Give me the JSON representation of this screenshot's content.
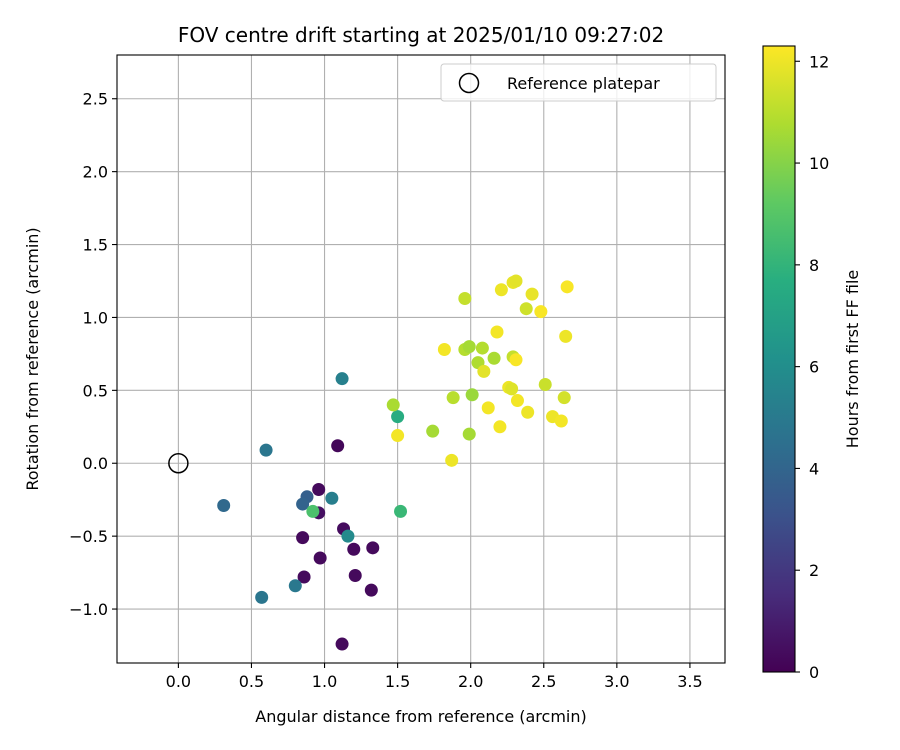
{
  "chart_data": {
    "type": "scatter",
    "title": "FOV centre drift starting at 2025/01/10 09:27:02",
    "xlabel": "Angular distance from reference (arcmin)",
    "ylabel": "Rotation from reference (arcmin)",
    "xlim": [
      -0.42,
      3.74
    ],
    "ylim": [
      -1.37,
      2.8
    ],
    "xticks": [
      "0.0",
      "0.5",
      "1.0",
      "1.5",
      "2.0",
      "2.5",
      "3.0",
      "3.5"
    ],
    "yticks": [
      "−1.0",
      "−0.5",
      "0.0",
      "0.5",
      "1.0",
      "1.5",
      "2.0",
      "2.5"
    ],
    "grid": true,
    "legend": {
      "placement": "top-right",
      "entries": [
        "Reference platepar"
      ]
    },
    "reference": {
      "x": 0.0,
      "y": 0.0
    },
    "colorbar": {
      "label": "Hours from first FF file",
      "range": [
        0,
        12.3
      ],
      "ticks": [
        "0",
        "2",
        "4",
        "6",
        "8",
        "10",
        "12"
      ],
      "colormap": "viridis"
    },
    "points": [
      {
        "x": 1.09,
        "y": 0.12,
        "h": 0.2
      },
      {
        "x": 0.96,
        "y": -0.18,
        "h": 0.3
      },
      {
        "x": 0.96,
        "y": -0.34,
        "h": 0.5
      },
      {
        "x": 1.13,
        "y": -0.45,
        "h": 0.4
      },
      {
        "x": 1.33,
        "y": -0.58,
        "h": 0.3
      },
      {
        "x": 0.85,
        "y": -0.51,
        "h": 0.3
      },
      {
        "x": 1.2,
        "y": -0.59,
        "h": 0.3
      },
      {
        "x": 0.97,
        "y": -0.65,
        "h": 0.3
      },
      {
        "x": 0.86,
        "y": -0.78,
        "h": 0.3
      },
      {
        "x": 1.21,
        "y": -0.77,
        "h": 0.3
      },
      {
        "x": 1.32,
        "y": -0.87,
        "h": 0.3
      },
      {
        "x": 1.12,
        "y": -1.24,
        "h": 0.3
      },
      {
        "x": 0.88,
        "y": -0.23,
        "h": 3.7
      },
      {
        "x": 0.85,
        "y": -0.28,
        "h": 3.9
      },
      {
        "x": 0.31,
        "y": -0.29,
        "h": 4.2
      },
      {
        "x": 0.6,
        "y": 0.09,
        "h": 4.8
      },
      {
        "x": 0.57,
        "y": -0.92,
        "h": 4.8
      },
      {
        "x": 0.8,
        "y": -0.84,
        "h": 4.9
      },
      {
        "x": 1.12,
        "y": 0.58,
        "h": 5.3
      },
      {
        "x": 1.05,
        "y": -0.24,
        "h": 5.2
      },
      {
        "x": 1.16,
        "y": -0.5,
        "h": 5.8
      },
      {
        "x": 1.5,
        "y": 0.32,
        "h": 7.6
      },
      {
        "x": 1.52,
        "y": -0.33,
        "h": 8.2
      },
      {
        "x": 0.92,
        "y": -0.33,
        "h": 8.7
      },
      {
        "x": 1.47,
        "y": 0.4,
        "h": 10.7
      },
      {
        "x": 1.74,
        "y": 0.22,
        "h": 10.6
      },
      {
        "x": 1.88,
        "y": 0.45,
        "h": 11.0
      },
      {
        "x": 1.96,
        "y": 1.13,
        "h": 11.2
      },
      {
        "x": 1.96,
        "y": 0.78,
        "h": 10.9
      },
      {
        "x": 1.99,
        "y": 0.8,
        "h": 10.6
      },
      {
        "x": 2.01,
        "y": 0.47,
        "h": 10.4
      },
      {
        "x": 1.99,
        "y": 0.2,
        "h": 10.6
      },
      {
        "x": 2.05,
        "y": 0.69,
        "h": 10.8
      },
      {
        "x": 2.08,
        "y": 0.79,
        "h": 10.9
      },
      {
        "x": 2.16,
        "y": 0.72,
        "h": 10.7
      },
      {
        "x": 2.29,
        "y": 0.73,
        "h": 11.2
      },
      {
        "x": 2.38,
        "y": 1.06,
        "h": 11.4
      },
      {
        "x": 2.51,
        "y": 0.54,
        "h": 11.3
      },
      {
        "x": 2.64,
        "y": 0.45,
        "h": 11.5
      },
      {
        "x": 1.82,
        "y": 0.78,
        "h": 12.1
      },
      {
        "x": 1.87,
        "y": 0.02,
        "h": 12.0
      },
      {
        "x": 1.5,
        "y": 0.19,
        "h": 12.1
      },
      {
        "x": 2.09,
        "y": 0.63,
        "h": 11.8
      },
      {
        "x": 2.12,
        "y": 0.38,
        "h": 12.1
      },
      {
        "x": 2.18,
        "y": 0.9,
        "h": 12.1
      },
      {
        "x": 2.21,
        "y": 1.19,
        "h": 12.0
      },
      {
        "x": 2.2,
        "y": 0.25,
        "h": 12.1
      },
      {
        "x": 2.26,
        "y": 0.52,
        "h": 12.0
      },
      {
        "x": 2.28,
        "y": 0.51,
        "h": 11.7
      },
      {
        "x": 2.29,
        "y": 1.24,
        "h": 11.9
      },
      {
        "x": 2.31,
        "y": 1.25,
        "h": 11.8
      },
      {
        "x": 2.32,
        "y": 0.43,
        "h": 12.1
      },
      {
        "x": 2.31,
        "y": 0.71,
        "h": 12.2
      },
      {
        "x": 2.39,
        "y": 0.35,
        "h": 12.0
      },
      {
        "x": 2.42,
        "y": 1.16,
        "h": 11.9
      },
      {
        "x": 2.48,
        "y": 1.04,
        "h": 12.2
      },
      {
        "x": 2.56,
        "y": 0.32,
        "h": 12.0
      },
      {
        "x": 2.62,
        "y": 0.29,
        "h": 12.1
      },
      {
        "x": 2.65,
        "y": 0.87,
        "h": 12.0
      },
      {
        "x": 2.66,
        "y": 1.21,
        "h": 12.2
      }
    ]
  }
}
